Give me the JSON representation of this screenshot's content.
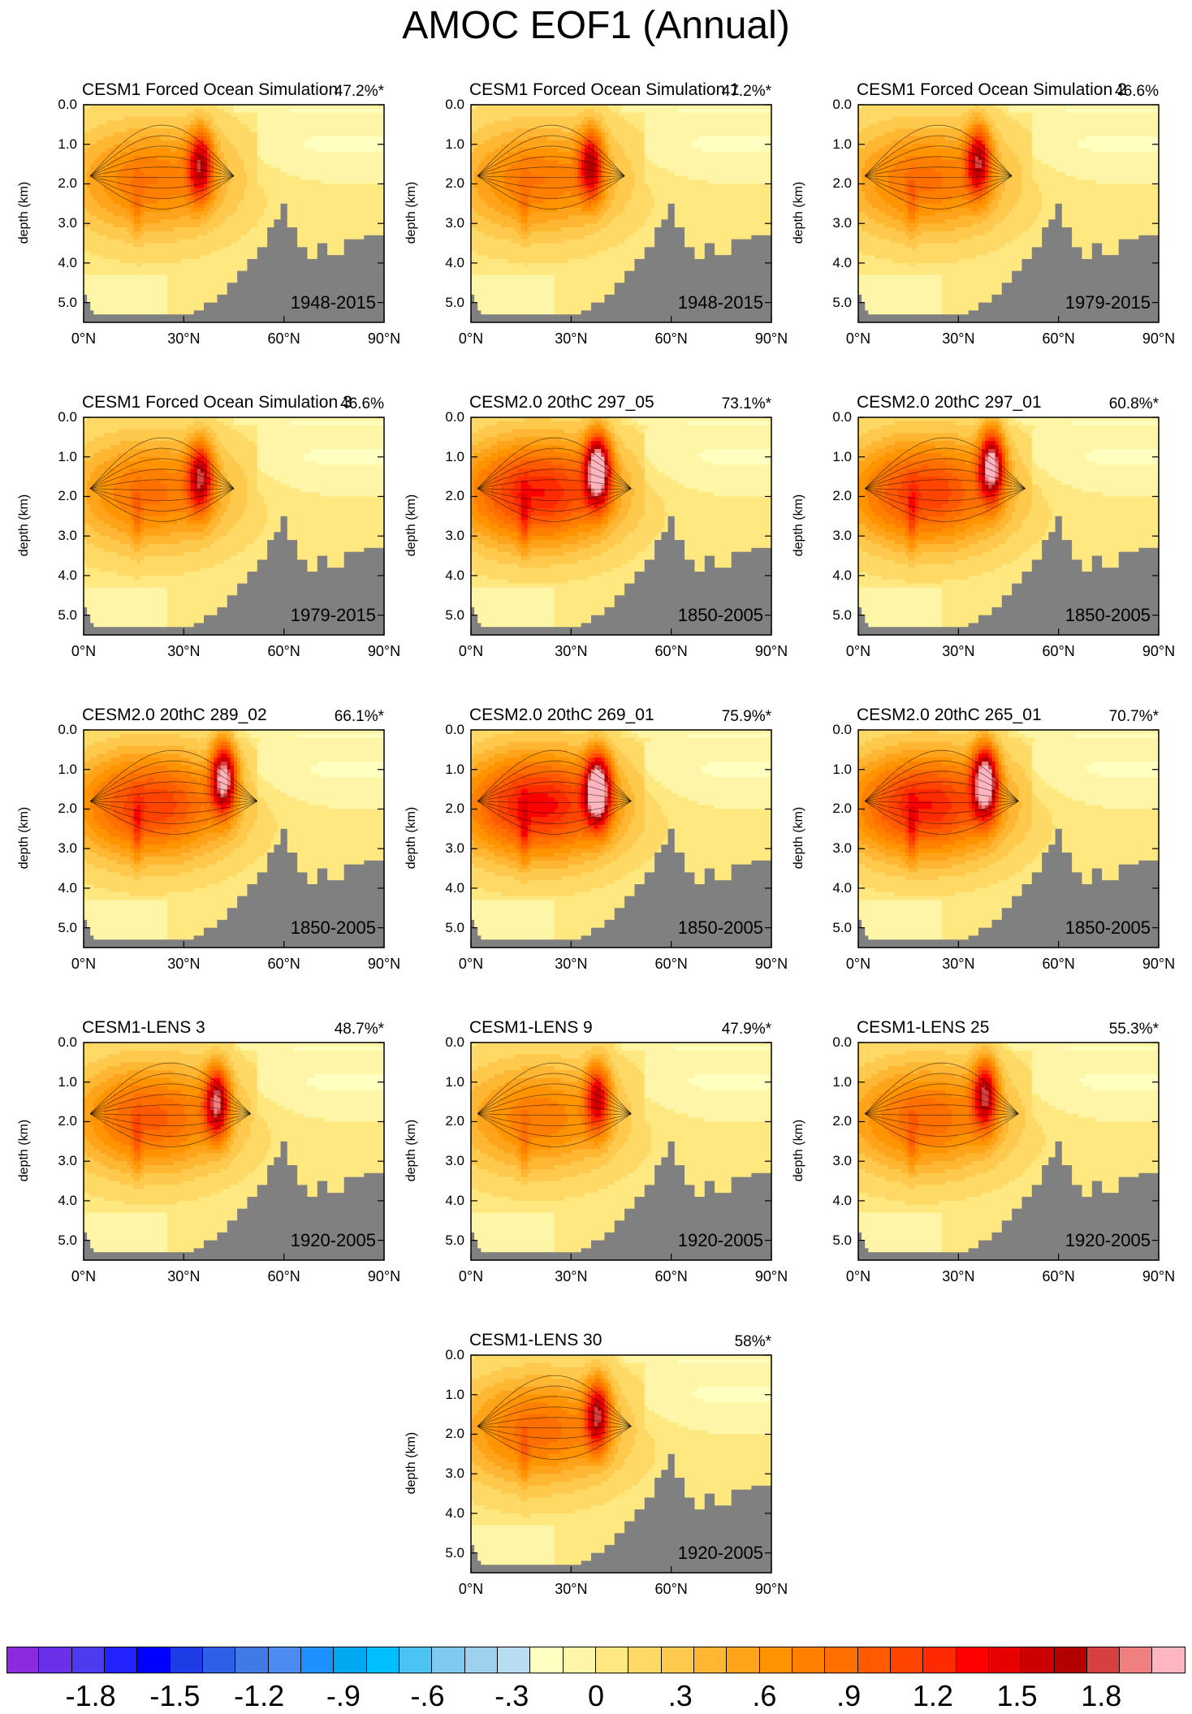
{
  "title": "AMOC EOF1 (Annual)",
  "chart_data": {
    "type": "contour",
    "title": "AMOC EOF1 (Annual)",
    "xlabel": "",
    "ylabel": "depth (km)",
    "x_range_deg_N": [
      0,
      90
    ],
    "y_range_km": [
      0.0,
      5.5
    ],
    "xticks": [
      "0°N",
      "30°N",
      "60°N",
      "90°N"
    ],
    "yticks": [
      "0.0",
      "1.0",
      "2.0",
      "3.0",
      "4.0",
      "5.0"
    ],
    "panels": [
      {
        "name": "CESM1 Forced Ocean Simulation",
        "pct": "47.2%*",
        "years": "1948-2015",
        "peak": 1.25,
        "core_lat": 35,
        "core_depth": 1.5
      },
      {
        "name": "CESM1 Forced Ocean Simulation 1",
        "pct": "47.2%*",
        "years": "1948-2015",
        "peak": 1.25,
        "core_lat": 36,
        "core_depth": 1.5
      },
      {
        "name": "CESM1 Forced Ocean Simulation 2",
        "pct": "46.6%",
        "years": "1979-2015",
        "peak": 1.3,
        "core_lat": 36,
        "core_depth": 1.4
      },
      {
        "name": "CESM1 Forced Ocean Simulation 3",
        "pct": "46.6%",
        "years": "1979-2015",
        "peak": 1.3,
        "core_lat": 35,
        "core_depth": 1.5
      },
      {
        "name": "CESM2.0 20thC 297_05",
        "pct": "73.1%*",
        "years": "1850-2005",
        "peak": 2.0,
        "core_lat": 38,
        "core_depth": 1.3
      },
      {
        "name": "CESM2.0 20thC 297_01",
        "pct": "60.8%*",
        "years": "1850-2005",
        "peak": 1.8,
        "core_lat": 40,
        "core_depth": 1.2
      },
      {
        "name": "CESM2.0 20thC 289_02",
        "pct": "66.1%*",
        "years": "1850-2005",
        "peak": 1.8,
        "core_lat": 42,
        "core_depth": 1.2
      },
      {
        "name": "CESM2.0 20thC 269_01",
        "pct": "75.9%*",
        "years": "1850-2005",
        "peak": 2.1,
        "core_lat": 38,
        "core_depth": 1.5
      },
      {
        "name": "CESM2.0 20thC 265_01",
        "pct": "70.7%*",
        "years": "1850-2005",
        "peak": 2.0,
        "core_lat": 38,
        "core_depth": 1.3
      },
      {
        "name": "CESM1-LENS 3",
        "pct": "48.7%*",
        "years": "1920-2005",
        "peak": 1.5,
        "core_lat": 40,
        "core_depth": 1.5
      },
      {
        "name": "CESM1-LENS 9",
        "pct": "47.9%*",
        "years": "1920-2005",
        "peak": 1.2,
        "core_lat": 38,
        "core_depth": 1.4
      },
      {
        "name": "CESM1-LENS 25",
        "pct": "55.3%*",
        "years": "1920-2005",
        "peak": 1.4,
        "core_lat": 38,
        "core_depth": 1.3
      },
      {
        "name": "CESM1-LENS 30",
        "pct": "58%*",
        "years": "1920-2005",
        "peak": 1.35,
        "core_lat": 38,
        "core_depth": 1.5
      }
    ],
    "colorbar": {
      "labels": [
        "-1.8",
        "-1.5",
        "-1.2",
        "-.9",
        "-.6",
        "-.3",
        "0",
        ".3",
        ".6",
        ".9",
        "1.2",
        "1.5",
        "1.8"
      ],
      "label_values": [
        -1.8,
        -1.5,
        -1.2,
        -0.9,
        -0.6,
        -0.3,
        0,
        0.3,
        0.6,
        0.9,
        1.2,
        1.5,
        1.8
      ],
      "min": -2.1,
      "max": 2.1,
      "colors": [
        "#8a2be2",
        "#6a2fe8",
        "#4b3cf0",
        "#2323ff",
        "#0000ff",
        "#1e3ce6",
        "#2e5fe8",
        "#3f7ae6",
        "#4a8cf0",
        "#1e90ff",
        "#00a8f0",
        "#00bfff",
        "#4cc3f2",
        "#7ec9f0",
        "#9fd0ee",
        "#b8dcf0",
        "#ffffc0",
        "#fff5a6",
        "#ffe880",
        "#ffd966",
        "#ffc94d",
        "#ffb733",
        "#ffa31a",
        "#ff9400",
        "#ff8000",
        "#ff6f00",
        "#ff5a00",
        "#ff4400",
        "#ff2a00",
        "#ff0000",
        "#e60000",
        "#cc0000",
        "#b30000",
        "#d64040",
        "#f08080",
        "#ffb6c1"
      ]
    }
  }
}
